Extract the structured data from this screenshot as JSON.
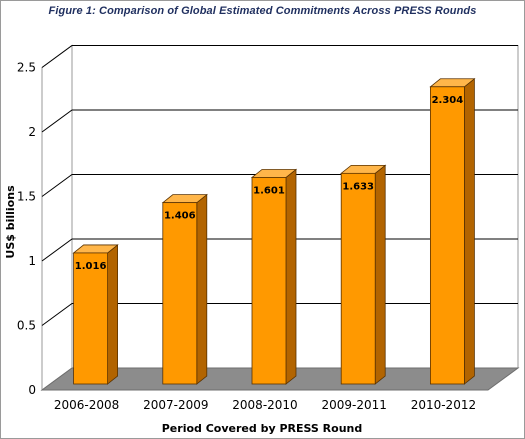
{
  "chart_data": {
    "type": "bar",
    "title": "Figure 1: Comparison of Global Estimated Commitments Across PRESS Rounds",
    "xlabel": "Period Covered by PRESS Round",
    "ylabel": "US$ billions",
    "categories": [
      "2006-2008",
      "2007-2009",
      "2008-2010",
      "2009-2011",
      "2010-2012"
    ],
    "values": [
      1.016,
      1.406,
      1.601,
      1.633,
      2.304
    ],
    "data_labels": [
      "1.016",
      "1.406",
      "1.601",
      "1.633",
      "2.304"
    ],
    "ylim": [
      0,
      2.5
    ],
    "yticks": [
      "0",
      "0.5",
      "1",
      "1.5",
      "2",
      "2.5"
    ],
    "grid": true,
    "legend": "none",
    "colors": {
      "bar_front": "#ff9900",
      "bar_side": "#b26400",
      "bar_top": "#ffb64a",
      "floor": "#8c8c8c"
    }
  }
}
